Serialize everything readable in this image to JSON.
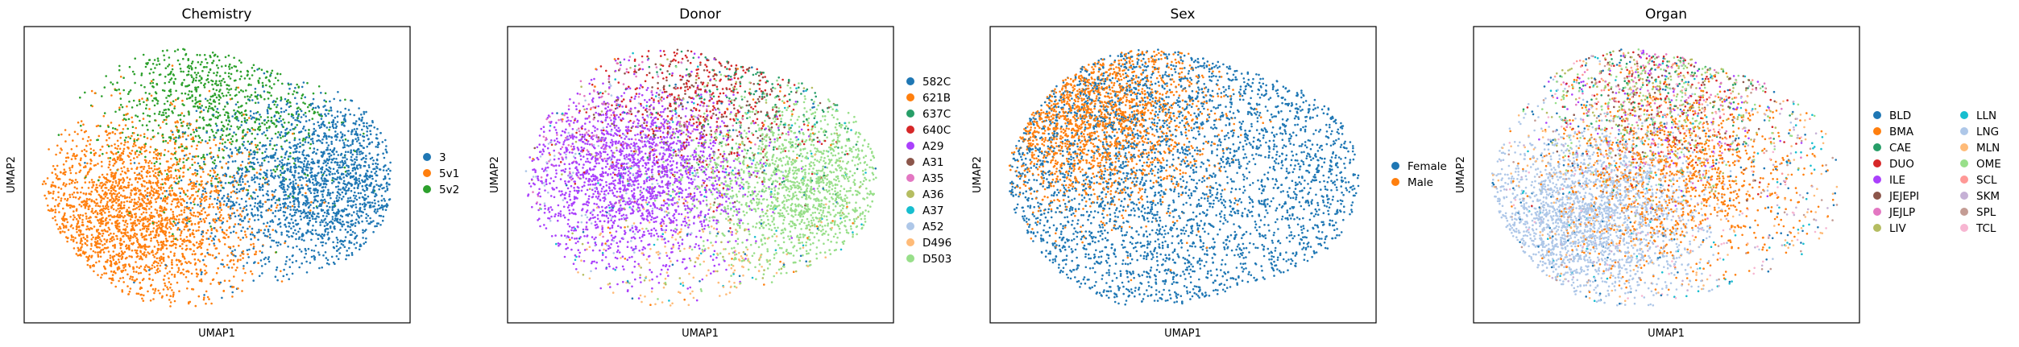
{
  "chart_data": [
    {
      "type": "scatter",
      "title": "Chemistry",
      "xlabel": "UMAP1",
      "ylabel": "UMAP2",
      "legend_position": "right",
      "legend_columns": 1,
      "categories": [
        "3",
        "5v1",
        "5v2"
      ],
      "colors": [
        "#1f77b4",
        "#ff7f0e",
        "#2ca02c"
      ],
      "point_shares": [
        0.38,
        0.45,
        0.17
      ],
      "regions": [
        "east",
        "southwest",
        "north"
      ]
    },
    {
      "type": "scatter",
      "title": "Donor",
      "xlabel": "UMAP1",
      "ylabel": "UMAP2",
      "legend_position": "right",
      "legend_columns": 1,
      "categories": [
        "582C",
        "621B",
        "637C",
        "640C",
        "A29",
        "A31",
        "A35",
        "A36",
        "A37",
        "A52",
        "D496",
        "D503"
      ],
      "colors": [
        "#1f77b4",
        "#ff7f0e",
        "#279e68",
        "#d62728",
        "#aa40fc",
        "#8c564b",
        "#e377c2",
        "#b5bd61",
        "#17becf",
        "#aec7e8",
        "#ffbb78",
        "#98df8a"
      ],
      "point_shares": [
        0.01,
        0.01,
        0.03,
        0.08,
        0.4,
        0.04,
        0.03,
        0.02,
        0.02,
        0.03,
        0.03,
        0.3
      ],
      "regions": [
        "mixed",
        "mixed",
        "northeast",
        "north",
        "west",
        "north",
        "northwest",
        "mixed",
        "mixed",
        "west",
        "south",
        "east"
      ]
    },
    {
      "type": "scatter",
      "title": "Sex",
      "xlabel": "UMAP1",
      "ylabel": "UMAP2",
      "legend_position": "right",
      "legend_columns": 1,
      "categories": [
        "Female",
        "Male"
      ],
      "colors": [
        "#1f77b4",
        "#ff7f0e"
      ],
      "point_shares": [
        0.65,
        0.35
      ],
      "regions": [
        "mixed",
        "northwest"
      ]
    },
    {
      "type": "scatter",
      "title": "Organ",
      "xlabel": "UMAP1",
      "ylabel": "UMAP2",
      "legend_position": "right",
      "legend_columns": 2,
      "categories": [
        "BLD",
        "BMA",
        "CAE",
        "DUO",
        "ILE",
        "JEJEPI",
        "JEJLP",
        "LIV",
        "LLN",
        "LNG",
        "MLN",
        "OME",
        "SCL",
        "SKM",
        "SPL",
        "TCL"
      ],
      "colors": [
        "#1f77b4",
        "#ff7f0e",
        "#279e68",
        "#d62728",
        "#aa40fc",
        "#8c564b",
        "#e377c2",
        "#b5bd61",
        "#17becf",
        "#aec7e8",
        "#ffbb78",
        "#98df8a",
        "#ff9896",
        "#c5b0d5",
        "#c49c94",
        "#f7b6d2"
      ],
      "point_shares": [
        0.03,
        0.22,
        0.02,
        0.03,
        0.02,
        0.02,
        0.02,
        0.04,
        0.02,
        0.42,
        0.04,
        0.04,
        0.02,
        0.02,
        0.02,
        0.02
      ],
      "regions": [
        "mixed",
        "center",
        "north",
        "north",
        "north",
        "north",
        "north",
        "north",
        "mixed",
        "southwest",
        "mixed",
        "north",
        "north",
        "mixed",
        "mixed",
        "mixed"
      ]
    }
  ]
}
